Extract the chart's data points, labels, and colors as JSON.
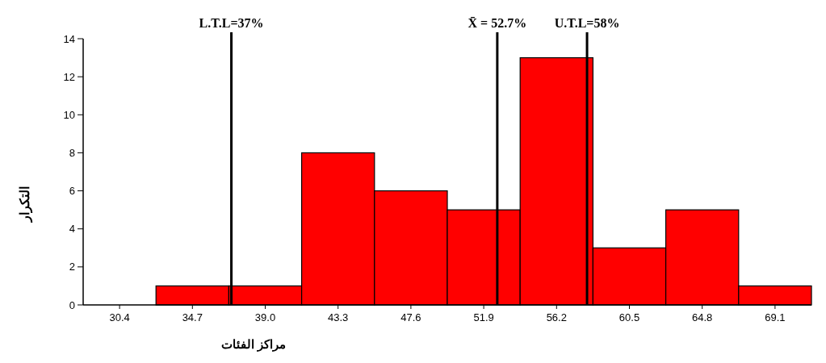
{
  "chart_data": {
    "type": "histogram",
    "xlabel": "مراكز الفئات",
    "ylabel": "التكرار",
    "bins": [
      28.25,
      32.55,
      36.85,
      41.15,
      45.45,
      49.75,
      54.05,
      58.35,
      62.65,
      66.95,
      71.25
    ],
    "values": [
      0,
      1,
      1,
      8,
      6,
      5,
      13,
      3,
      5,
      1
    ],
    "color": "#ff0000",
    "xlim": [
      28.25,
      71.25
    ],
    "xticks": [
      30.4,
      34.7,
      {
        "value": 39,
        "label": "39.0"
      },
      43.3,
      47.6,
      51.9,
      56.2,
      60.5,
      64.8,
      69.1
    ],
    "ylim": [
      0,
      14
    ],
    "yticks": [
      0,
      2,
      4,
      6,
      8,
      10,
      12,
      14
    ],
    "ref_lines": [
      {
        "axis": "x",
        "value": 37,
        "label": "L.T.L=37%",
        "color": "#000000"
      },
      {
        "axis": "x",
        "value": 52.7,
        "label": "X̄ = 52.7%",
        "color": "#000000"
      },
      {
        "axis": "x",
        "value": 58,
        "label": "U.T.L=58%",
        "color": "#000000"
      }
    ],
    "grid": false
  }
}
